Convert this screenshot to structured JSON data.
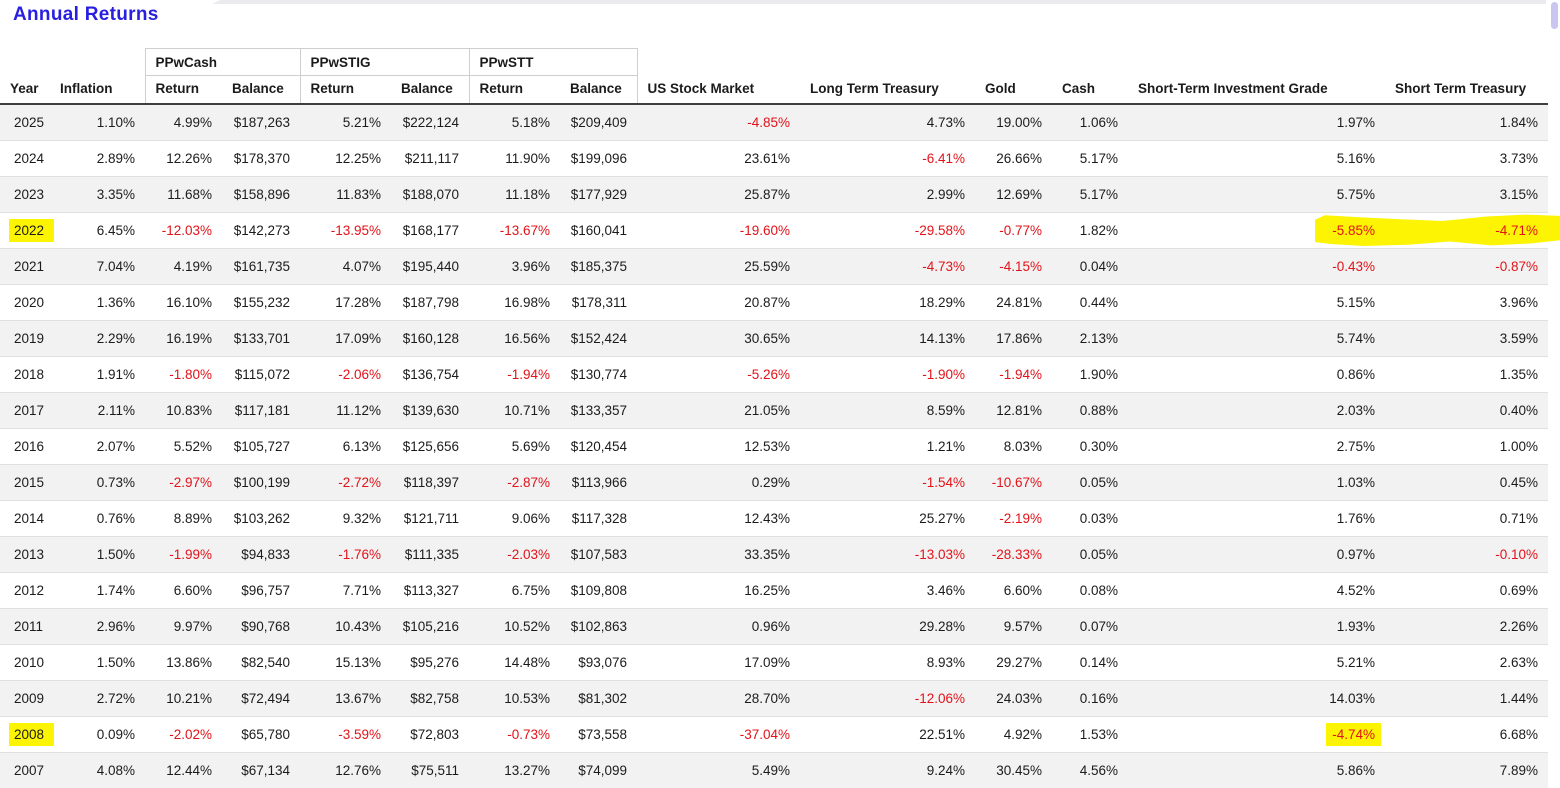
{
  "title": "Annual Returns",
  "colors": {
    "title": "#281fe0",
    "negative_text": "#e31219",
    "marker_highlight": "#fdf403",
    "row_stripe": "#f2f2f3",
    "header_rule": "#3f3f3f",
    "scrollbar": "#c9c6f0"
  },
  "table": {
    "groups": [
      "PPwCash",
      "PPwSTIG",
      "PPwSTT"
    ],
    "headers": [
      "Year",
      "Inflation",
      "Return",
      "Balance",
      "Return",
      "Balance",
      "Return",
      "Balance",
      "US Stock Market",
      "Long Term Treasury",
      "Gold",
      "Cash",
      "Short-Term Investment Grade",
      "Short Term Treasury"
    ],
    "fields": [
      "year",
      "inflation",
      "ppwcash-return",
      "ppwcash-balance",
      "ppwstig-return",
      "ppwstig-balance",
      "ppwstt-return",
      "ppwstt-balance",
      "us-stock-market",
      "long-term-treasury",
      "gold",
      "cash",
      "short-term-investment-grade",
      "short-term-treasury"
    ],
    "rows": [
      {
        "cells": [
          {
            "t": "2025"
          },
          {
            "t": "1.10%"
          },
          {
            "t": "4.99%"
          },
          {
            "t": "$187,263"
          },
          {
            "t": "5.21%"
          },
          {
            "t": "$222,124"
          },
          {
            "t": "5.18%"
          },
          {
            "t": "$209,409"
          },
          {
            "t": "-4.85%",
            "n": true
          },
          {
            "t": "4.73%"
          },
          {
            "t": "19.00%"
          },
          {
            "t": "1.06%"
          },
          {
            "t": "1.97%"
          },
          {
            "t": "1.84%"
          }
        ]
      },
      {
        "cells": [
          {
            "t": "2024"
          },
          {
            "t": "2.89%"
          },
          {
            "t": "12.26%"
          },
          {
            "t": "$178,370"
          },
          {
            "t": "12.25%"
          },
          {
            "t": "$211,117"
          },
          {
            "t": "11.90%"
          },
          {
            "t": "$199,096"
          },
          {
            "t": "23.61%"
          },
          {
            "t": "-6.41%",
            "n": true
          },
          {
            "t": "26.66%"
          },
          {
            "t": "5.17%"
          },
          {
            "t": "5.16%"
          },
          {
            "t": "3.73%"
          }
        ]
      },
      {
        "cells": [
          {
            "t": "2023"
          },
          {
            "t": "3.35%"
          },
          {
            "t": "11.68%"
          },
          {
            "t": "$158,896"
          },
          {
            "t": "11.83%"
          },
          {
            "t": "$188,070"
          },
          {
            "t": "11.18%"
          },
          {
            "t": "$177,929"
          },
          {
            "t": "25.87%"
          },
          {
            "t": "2.99%"
          },
          {
            "t": "12.69%"
          },
          {
            "t": "5.17%"
          },
          {
            "t": "5.75%"
          },
          {
            "t": "3.15%"
          }
        ]
      },
      {
        "streak": true,
        "cells": [
          {
            "t": "2022",
            "h": true
          },
          {
            "t": "6.45%"
          },
          {
            "t": "-12.03%",
            "n": true
          },
          {
            "t": "$142,273"
          },
          {
            "t": "-13.95%",
            "n": true
          },
          {
            "t": "$168,177"
          },
          {
            "t": "-13.67%",
            "n": true
          },
          {
            "t": "$160,041"
          },
          {
            "t": "-19.60%",
            "n": true
          },
          {
            "t": "-29.58%",
            "n": true
          },
          {
            "t": "-0.77%",
            "n": true
          },
          {
            "t": "1.82%"
          },
          {
            "t": "-5.85%",
            "n": true
          },
          {
            "t": "-4.71%",
            "n": true
          }
        ]
      },
      {
        "cells": [
          {
            "t": "2021"
          },
          {
            "t": "7.04%"
          },
          {
            "t": "4.19%"
          },
          {
            "t": "$161,735"
          },
          {
            "t": "4.07%"
          },
          {
            "t": "$195,440"
          },
          {
            "t": "3.96%"
          },
          {
            "t": "$185,375"
          },
          {
            "t": "25.59%"
          },
          {
            "t": "-4.73%",
            "n": true
          },
          {
            "t": "-4.15%",
            "n": true
          },
          {
            "t": "0.04%"
          },
          {
            "t": "-0.43%",
            "n": true
          },
          {
            "t": "-0.87%",
            "n": true
          }
        ]
      },
      {
        "cells": [
          {
            "t": "2020"
          },
          {
            "t": "1.36%"
          },
          {
            "t": "16.10%"
          },
          {
            "t": "$155,232"
          },
          {
            "t": "17.28%"
          },
          {
            "t": "$187,798"
          },
          {
            "t": "16.98%"
          },
          {
            "t": "$178,311"
          },
          {
            "t": "20.87%"
          },
          {
            "t": "18.29%"
          },
          {
            "t": "24.81%"
          },
          {
            "t": "0.44%"
          },
          {
            "t": "5.15%"
          },
          {
            "t": "3.96%"
          }
        ]
      },
      {
        "cells": [
          {
            "t": "2019"
          },
          {
            "t": "2.29%"
          },
          {
            "t": "16.19%"
          },
          {
            "t": "$133,701"
          },
          {
            "t": "17.09%"
          },
          {
            "t": "$160,128"
          },
          {
            "t": "16.56%"
          },
          {
            "t": "$152,424"
          },
          {
            "t": "30.65%"
          },
          {
            "t": "14.13%"
          },
          {
            "t": "17.86%"
          },
          {
            "t": "2.13%"
          },
          {
            "t": "5.74%"
          },
          {
            "t": "3.59%"
          }
        ]
      },
      {
        "cells": [
          {
            "t": "2018"
          },
          {
            "t": "1.91%"
          },
          {
            "t": "-1.80%",
            "n": true
          },
          {
            "t": "$115,072"
          },
          {
            "t": "-2.06%",
            "n": true
          },
          {
            "t": "$136,754"
          },
          {
            "t": "-1.94%",
            "n": true
          },
          {
            "t": "$130,774"
          },
          {
            "t": "-5.26%",
            "n": true
          },
          {
            "t": "-1.90%",
            "n": true
          },
          {
            "t": "-1.94%",
            "n": true
          },
          {
            "t": "1.90%"
          },
          {
            "t": "0.86%"
          },
          {
            "t": "1.35%"
          }
        ]
      },
      {
        "cells": [
          {
            "t": "2017"
          },
          {
            "t": "2.11%"
          },
          {
            "t": "10.83%"
          },
          {
            "t": "$117,181"
          },
          {
            "t": "11.12%"
          },
          {
            "t": "$139,630"
          },
          {
            "t": "10.71%"
          },
          {
            "t": "$133,357"
          },
          {
            "t": "21.05%"
          },
          {
            "t": "8.59%"
          },
          {
            "t": "12.81%"
          },
          {
            "t": "0.88%"
          },
          {
            "t": "2.03%"
          },
          {
            "t": "0.40%"
          }
        ]
      },
      {
        "cells": [
          {
            "t": "2016"
          },
          {
            "t": "2.07%"
          },
          {
            "t": "5.52%"
          },
          {
            "t": "$105,727"
          },
          {
            "t": "6.13%"
          },
          {
            "t": "$125,656"
          },
          {
            "t": "5.69%"
          },
          {
            "t": "$120,454"
          },
          {
            "t": "12.53%"
          },
          {
            "t": "1.21%"
          },
          {
            "t": "8.03%"
          },
          {
            "t": "0.30%"
          },
          {
            "t": "2.75%"
          },
          {
            "t": "1.00%"
          }
        ]
      },
      {
        "cells": [
          {
            "t": "2015"
          },
          {
            "t": "0.73%"
          },
          {
            "t": "-2.97%",
            "n": true
          },
          {
            "t": "$100,199"
          },
          {
            "t": "-2.72%",
            "n": true
          },
          {
            "t": "$118,397"
          },
          {
            "t": "-2.87%",
            "n": true
          },
          {
            "t": "$113,966"
          },
          {
            "t": "0.29%"
          },
          {
            "t": "-1.54%",
            "n": true
          },
          {
            "t": "-10.67%",
            "n": true
          },
          {
            "t": "0.05%"
          },
          {
            "t": "1.03%"
          },
          {
            "t": "0.45%"
          }
        ]
      },
      {
        "cells": [
          {
            "t": "2014"
          },
          {
            "t": "0.76%"
          },
          {
            "t": "8.89%"
          },
          {
            "t": "$103,262"
          },
          {
            "t": "9.32%"
          },
          {
            "t": "$121,711"
          },
          {
            "t": "9.06%"
          },
          {
            "t": "$117,328"
          },
          {
            "t": "12.43%"
          },
          {
            "t": "25.27%"
          },
          {
            "t": "-2.19%",
            "n": true
          },
          {
            "t": "0.03%"
          },
          {
            "t": "1.76%"
          },
          {
            "t": "0.71%"
          }
        ]
      },
      {
        "cells": [
          {
            "t": "2013"
          },
          {
            "t": "1.50%"
          },
          {
            "t": "-1.99%",
            "n": true
          },
          {
            "t": "$94,833"
          },
          {
            "t": "-1.76%",
            "n": true
          },
          {
            "t": "$111,335"
          },
          {
            "t": "-2.03%",
            "n": true
          },
          {
            "t": "$107,583"
          },
          {
            "t": "33.35%"
          },
          {
            "t": "-13.03%",
            "n": true
          },
          {
            "t": "-28.33%",
            "n": true
          },
          {
            "t": "0.05%"
          },
          {
            "t": "0.97%"
          },
          {
            "t": "-0.10%",
            "n": true
          }
        ]
      },
      {
        "cells": [
          {
            "t": "2012"
          },
          {
            "t": "1.74%"
          },
          {
            "t": "6.60%"
          },
          {
            "t": "$96,757"
          },
          {
            "t": "7.71%"
          },
          {
            "t": "$113,327"
          },
          {
            "t": "6.75%"
          },
          {
            "t": "$109,808"
          },
          {
            "t": "16.25%"
          },
          {
            "t": "3.46%"
          },
          {
            "t": "6.60%"
          },
          {
            "t": "0.08%"
          },
          {
            "t": "4.52%"
          },
          {
            "t": "0.69%"
          }
        ]
      },
      {
        "cells": [
          {
            "t": "2011"
          },
          {
            "t": "2.96%"
          },
          {
            "t": "9.97%"
          },
          {
            "t": "$90,768"
          },
          {
            "t": "10.43%"
          },
          {
            "t": "$105,216"
          },
          {
            "t": "10.52%"
          },
          {
            "t": "$102,863"
          },
          {
            "t": "0.96%"
          },
          {
            "t": "29.28%"
          },
          {
            "t": "9.57%"
          },
          {
            "t": "0.07%"
          },
          {
            "t": "1.93%"
          },
          {
            "t": "2.26%"
          }
        ]
      },
      {
        "cells": [
          {
            "t": "2010"
          },
          {
            "t": "1.50%"
          },
          {
            "t": "13.86%"
          },
          {
            "t": "$82,540"
          },
          {
            "t": "15.13%"
          },
          {
            "t": "$95,276"
          },
          {
            "t": "14.48%"
          },
          {
            "t": "$93,076"
          },
          {
            "t": "17.09%"
          },
          {
            "t": "8.93%"
          },
          {
            "t": "29.27%"
          },
          {
            "t": "0.14%"
          },
          {
            "t": "5.21%"
          },
          {
            "t": "2.63%"
          }
        ]
      },
      {
        "cells": [
          {
            "t": "2009"
          },
          {
            "t": "2.72%"
          },
          {
            "t": "10.21%"
          },
          {
            "t": "$72,494"
          },
          {
            "t": "13.67%"
          },
          {
            "t": "$82,758"
          },
          {
            "t": "10.53%"
          },
          {
            "t": "$81,302"
          },
          {
            "t": "28.70%"
          },
          {
            "t": "-12.06%",
            "n": true
          },
          {
            "t": "24.03%"
          },
          {
            "t": "0.16%"
          },
          {
            "t": "14.03%"
          },
          {
            "t": "1.44%"
          }
        ]
      },
      {
        "cells": [
          {
            "t": "2008",
            "h": true
          },
          {
            "t": "0.09%"
          },
          {
            "t": "-2.02%",
            "n": true
          },
          {
            "t": "$65,780"
          },
          {
            "t": "-3.59%",
            "n": true
          },
          {
            "t": "$72,803"
          },
          {
            "t": "-0.73%",
            "n": true
          },
          {
            "t": "$73,558"
          },
          {
            "t": "-37.04%",
            "n": true
          },
          {
            "t": "22.51%"
          },
          {
            "t": "4.92%"
          },
          {
            "t": "1.53%"
          },
          {
            "t": "-4.74%",
            "n": true,
            "h": true
          },
          {
            "t": "6.68%"
          }
        ]
      },
      {
        "cells": [
          {
            "t": "2007"
          },
          {
            "t": "4.08%"
          },
          {
            "t": "12.44%"
          },
          {
            "t": "$67,134"
          },
          {
            "t": "12.76%"
          },
          {
            "t": "$75,511"
          },
          {
            "t": "13.27%"
          },
          {
            "t": "$74,099"
          },
          {
            "t": "5.49%"
          },
          {
            "t": "9.24%"
          },
          {
            "t": "30.45%"
          },
          {
            "t": "4.56%"
          },
          {
            "t": "5.86%"
          },
          {
            "t": "7.89%"
          }
        ]
      }
    ]
  }
}
